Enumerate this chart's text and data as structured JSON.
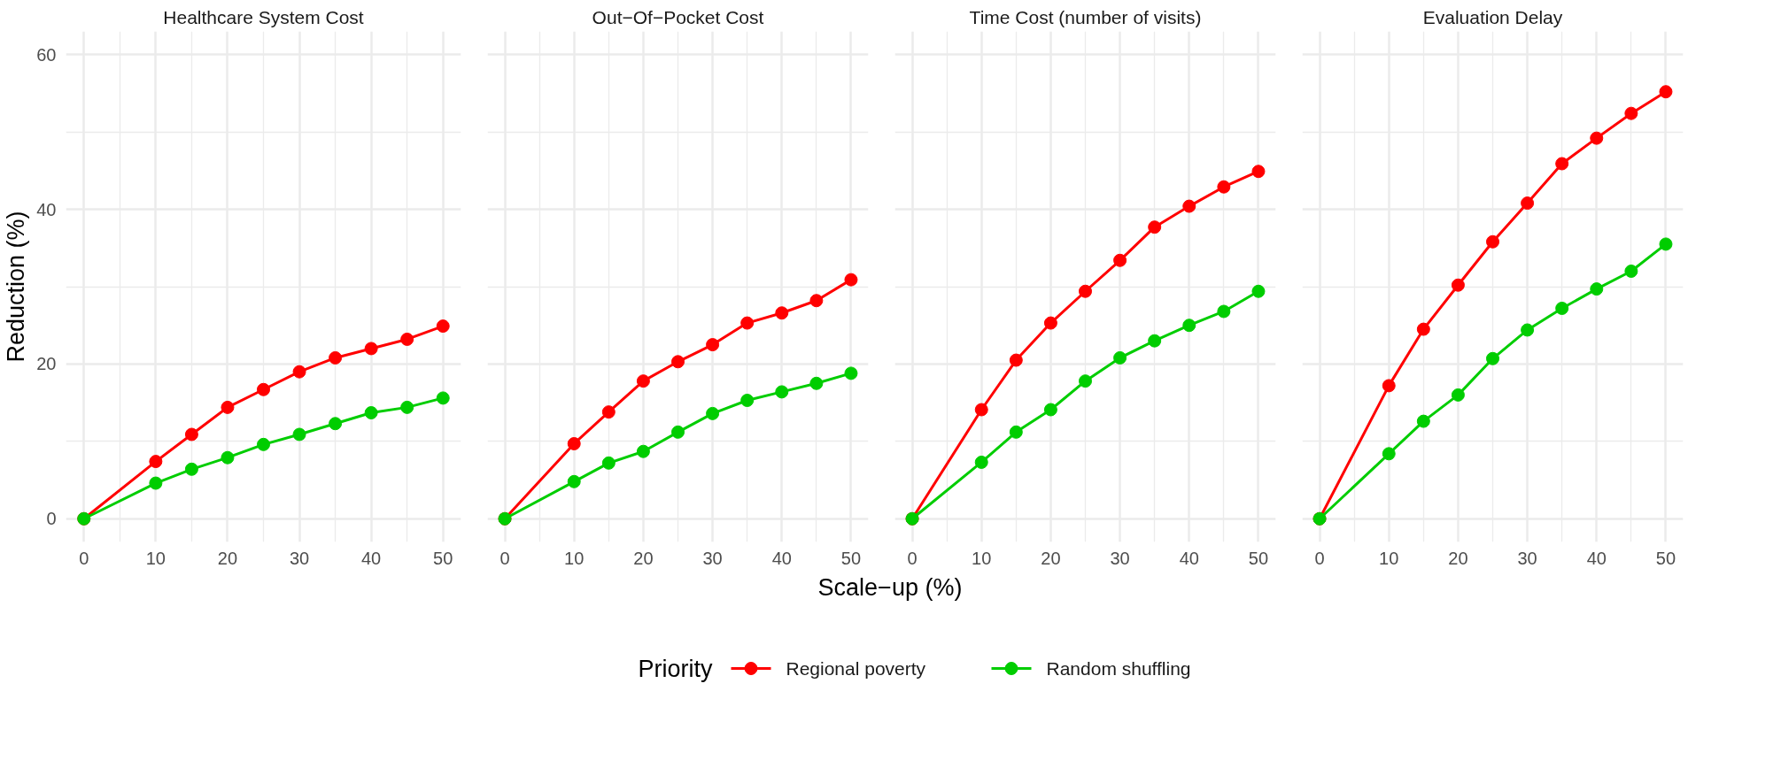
{
  "chart_data": [
    {
      "type": "line",
      "title": "Healthcare System Cost",
      "ylabel": "Reduction (%)",
      "legend_title": "Priority",
      "legend": "bottom",
      "marker": "circle",
      "line_style": "solid",
      "grid": true,
      "x": [
        0,
        10,
        15,
        20,
        25,
        30,
        35,
        40,
        45,
        50
      ],
      "xlim": [
        -2.5,
        52.5
      ],
      "ylim": [
        -3,
        63
      ],
      "xticks": [
        0,
        {
          "value": 5,
          "label": null
        },
        10,
        {
          "value": 15,
          "label": null
        },
        20,
        {
          "value": 25,
          "label": null
        },
        30,
        {
          "value": 35,
          "label": null
        },
        40,
        {
          "value": 45,
          "label": null
        },
        50
      ],
      "yticks": [
        0,
        {
          "value": 10,
          "label": null
        },
        20,
        {
          "value": 30,
          "label": null
        },
        40,
        {
          "value": 50,
          "label": null
        },
        60
      ],
      "series": [
        {
          "name": "Regional poverty",
          "color": "#ff0000",
          "values": [
            0,
            7.4,
            10.9,
            14.4,
            16.7,
            19.0,
            20.8,
            22.0,
            23.2,
            24.9
          ]
        },
        {
          "name": "Random shuffling",
          "color": "#00cd00",
          "values": [
            0,
            4.6,
            6.4,
            7.9,
            9.6,
            10.9,
            12.3,
            13.7,
            14.4,
            15.6
          ]
        }
      ]
    },
    {
      "type": "line",
      "title": "Out−Of−Pocket Cost",
      "xlabel": "Scale−up (%)",
      "marker": "circle",
      "line_style": "solid",
      "grid": true,
      "tick_labels": "x",
      "x": [
        0,
        10,
        15,
        20,
        25,
        30,
        35,
        40,
        45,
        50
      ],
      "xlim": [
        -2.5,
        52.5
      ],
      "ylim": [
        -3,
        63
      ],
      "xticks": [
        0,
        {
          "value": 5,
          "label": null
        },
        10,
        {
          "value": 15,
          "label": null
        },
        20,
        {
          "value": 25,
          "label": null
        },
        30,
        {
          "value": 35,
          "label": null
        },
        40,
        {
          "value": 45,
          "label": null
        },
        50
      ],
      "yticks": [
        0,
        {
          "value": 10,
          "label": null
        },
        20,
        {
          "value": 30,
          "label": null
        },
        40,
        {
          "value": 50,
          "label": null
        },
        60
      ],
      "series": [
        {
          "color": "#ff0000",
          "values": [
            0,
            9.7,
            13.8,
            17.8,
            20.3,
            22.5,
            25.3,
            26.6,
            28.2,
            30.9
          ]
        },
        {
          "color": "#00cd00",
          "values": [
            0,
            4.8,
            7.2,
            8.7,
            11.2,
            13.6,
            15.3,
            16.4,
            17.5,
            18.8
          ]
        }
      ]
    },
    {
      "type": "line",
      "title": "Time Cost (number of visits)",
      "marker": "circle",
      "line_style": "solid",
      "grid": true,
      "tick_labels": "x",
      "x": [
        0,
        10,
        15,
        20,
        25,
        30,
        35,
        40,
        45,
        50
      ],
      "xlim": [
        -2.5,
        52.5
      ],
      "ylim": [
        -3,
        63
      ],
      "xticks": [
        0,
        {
          "value": 5,
          "label": null
        },
        10,
        {
          "value": 15,
          "label": null
        },
        20,
        {
          "value": 25,
          "label": null
        },
        30,
        {
          "value": 35,
          "label": null
        },
        40,
        {
          "value": 45,
          "label": null
        },
        50
      ],
      "yticks": [
        0,
        {
          "value": 10,
          "label": null
        },
        20,
        {
          "value": 30,
          "label": null
        },
        40,
        {
          "value": 50,
          "label": null
        },
        60
      ],
      "series": [
        {
          "color": "#ff0000",
          "values": [
            0,
            14.1,
            20.5,
            25.3,
            29.4,
            33.4,
            37.7,
            40.4,
            42.9,
            44.9
          ]
        },
        {
          "color": "#00cd00",
          "values": [
            0,
            7.3,
            11.2,
            14.1,
            17.8,
            20.8,
            23.0,
            25.0,
            26.8,
            29.4
          ]
        }
      ]
    },
    {
      "type": "line",
      "title": "Evaluation Delay",
      "marker": "circle",
      "line_style": "solid",
      "grid": true,
      "tick_labels": "x",
      "x": [
        0,
        10,
        15,
        20,
        25,
        30,
        35,
        40,
        45,
        50
      ],
      "xlim": [
        -2.5,
        52.5
      ],
      "ylim": [
        -3,
        63
      ],
      "xticks": [
        0,
        {
          "value": 5,
          "label": null
        },
        10,
        {
          "value": 15,
          "label": null
        },
        20,
        {
          "value": 25,
          "label": null
        },
        30,
        {
          "value": 35,
          "label": null
        },
        40,
        {
          "value": 45,
          "label": null
        },
        50
      ],
      "yticks": [
        0,
        {
          "value": 10,
          "label": null
        },
        20,
        {
          "value": 30,
          "label": null
        },
        40,
        {
          "value": 50,
          "label": null
        },
        60
      ],
      "series": [
        {
          "color": "#ff0000",
          "values": [
            0,
            17.2,
            24.5,
            30.2,
            35.8,
            40.8,
            45.9,
            49.2,
            52.4,
            55.2
          ]
        },
        {
          "color": "#00cd00",
          "values": [
            0,
            8.4,
            12.6,
            16.0,
            20.7,
            24.4,
            27.2,
            29.7,
            32.0,
            35.5
          ]
        }
      ]
    }
  ]
}
